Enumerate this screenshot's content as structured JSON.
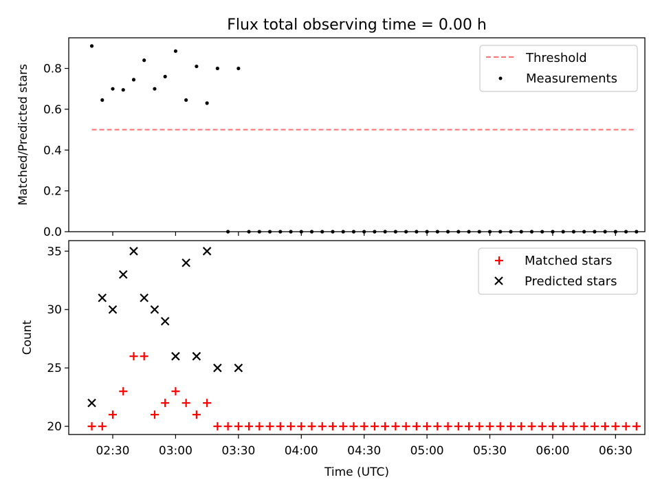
{
  "chart_data": [
    {
      "type": "scatter",
      "title": "Flux total observing time = 0.00 h",
      "ylabel": "Matched/Predicted stars",
      "xlabel": "",
      "ylim": [
        0,
        0.95
      ],
      "yticks": [
        "0.0",
        "0.2",
        "0.4",
        "0.6",
        "0.8"
      ],
      "legend_position": "top-right",
      "threshold": {
        "name": "Threshold",
        "value": 0.5,
        "x_range": [
          "02:20",
          "06:40"
        ],
        "color": "#ff7070",
        "style": "dashed"
      },
      "series": [
        {
          "name": "Measurements",
          "marker": "dot",
          "color": "#000000",
          "x": [
            "02:20",
            "02:25",
            "02:30",
            "02:35",
            "02:40",
            "02:45",
            "02:50",
            "02:55",
            "03:00",
            "03:05",
            "03:10",
            "03:15",
            "03:20",
            "03:25",
            "03:30",
            "03:35",
            "03:40",
            "03:45",
            "03:50",
            "03:55",
            "04:00",
            "04:05",
            "04:10",
            "04:15",
            "04:20",
            "04:25",
            "04:30",
            "04:35",
            "04:40",
            "04:45",
            "04:50",
            "04:55",
            "05:00",
            "05:05",
            "05:10",
            "05:15",
            "05:20",
            "05:25",
            "05:30",
            "05:35",
            "05:40",
            "05:45",
            "05:50",
            "05:55",
            "06:00",
            "06:05",
            "06:10",
            "06:15",
            "06:20",
            "06:25",
            "06:30",
            "06:35",
            "06:40"
          ],
          "y": [
            0.91,
            0.645,
            0.7,
            0.695,
            0.745,
            0.84,
            0.7,
            0.76,
            0.885,
            0.645,
            0.81,
            0.63,
            0.8,
            0,
            0.8,
            0,
            0,
            0,
            0,
            0,
            0,
            0,
            0,
            0,
            0,
            0,
            0,
            0,
            0,
            0,
            0,
            0,
            0,
            0,
            0,
            0,
            0,
            0,
            0,
            0,
            0,
            0,
            0,
            0,
            0,
            0,
            0,
            0,
            0,
            0,
            0,
            0,
            0
          ]
        }
      ]
    },
    {
      "type": "scatter",
      "title": "",
      "xlabel": "Time (UTC)",
      "ylabel": "Count",
      "ylim": [
        19.3,
        35.9
      ],
      "yticks": [
        "20",
        "25",
        "30",
        "35"
      ],
      "xlim": [
        "02:09",
        "06:44"
      ],
      "xticks": [
        "02:30",
        "03:00",
        "03:30",
        "04:00",
        "04:30",
        "05:00",
        "05:30",
        "06:00",
        "06:30"
      ],
      "legend_position": "top-right",
      "series": [
        {
          "name": "Matched stars",
          "marker": "plus",
          "color": "#ff0000",
          "x": [
            "02:20",
            "02:25",
            "02:30",
            "02:35",
            "02:40",
            "02:45",
            "02:50",
            "02:55",
            "03:00",
            "03:05",
            "03:10",
            "03:15",
            "03:20",
            "03:25",
            "03:30",
            "03:35",
            "03:40",
            "03:45",
            "03:50",
            "03:55",
            "04:00",
            "04:05",
            "04:10",
            "04:15",
            "04:20",
            "04:25",
            "04:30",
            "04:35",
            "04:40",
            "04:45",
            "04:50",
            "04:55",
            "05:00",
            "05:05",
            "05:10",
            "05:15",
            "05:20",
            "05:25",
            "05:30",
            "05:35",
            "05:40",
            "05:45",
            "05:50",
            "05:55",
            "06:00",
            "06:05",
            "06:10",
            "06:15",
            "06:20",
            "06:25",
            "06:30",
            "06:35",
            "06:40"
          ],
          "y": [
            20,
            20,
            21,
            23,
            26,
            26,
            21,
            22,
            23,
            22,
            21,
            22,
            20,
            20,
            20,
            20,
            20,
            20,
            20,
            20,
            20,
            20,
            20,
            20,
            20,
            20,
            20,
            20,
            20,
            20,
            20,
            20,
            20,
            20,
            20,
            20,
            20,
            20,
            20,
            20,
            20,
            20,
            20,
            20,
            20,
            20,
            20,
            20,
            20,
            20,
            20,
            20,
            20
          ]
        },
        {
          "name": "Predicted stars",
          "marker": "x",
          "color": "#000000",
          "x": [
            "02:20",
            "02:25",
            "02:30",
            "02:35",
            "02:40",
            "02:45",
            "02:50",
            "02:55",
            "03:00",
            "03:05",
            "03:10",
            "03:15",
            "03:20",
            "03:30"
          ],
          "y": [
            22,
            31,
            30,
            33,
            35,
            31,
            30,
            29,
            26,
            34,
            26,
            35,
            25,
            25
          ]
        }
      ]
    }
  ]
}
